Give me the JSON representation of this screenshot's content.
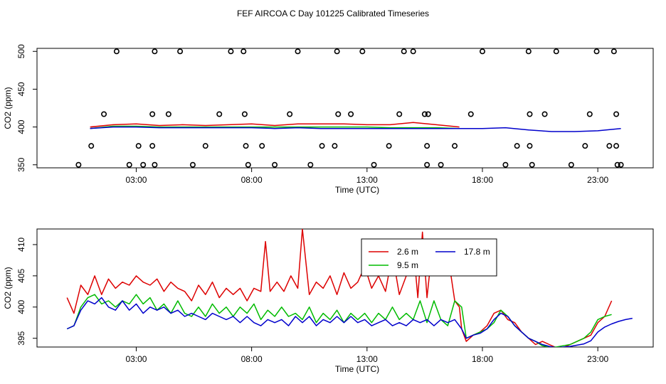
{
  "title": "FEF AIRCOA C  Day 101225  Calibrated Timeseries",
  "chart_data": [
    {
      "type": "scatter+line",
      "ylabel": "CO2 (ppm)",
      "xlabel": "Time (UTC)",
      "xlim": [
        -1.3,
        25.4
      ],
      "ylim": [
        346,
        504
      ],
      "xticks": [
        3,
        8,
        13,
        18,
        23
      ],
      "xtick_labels": [
        "03:00",
        "08:00",
        "13:00",
        "18:00",
        "23:00"
      ],
      "yticks": [
        350,
        400,
        450,
        500
      ],
      "ytick_labels": [
        "350",
        "400",
        "450",
        "500"
      ],
      "points": {
        "name": "calibration standards",
        "x": [
          0.5,
          1.6,
          1.05,
          2.15,
          2.7,
          3.1,
          3.3,
          3.8,
          3.7,
          3.7,
          3.8,
          4.4,
          4.9,
          5.45,
          6.0,
          6.6,
          7.1,
          7.65,
          7.7,
          7.75,
          7.85,
          8.45,
          9.0,
          9.65,
          10.0,
          10.55,
          11.05,
          11.6,
          11.7,
          11.75,
          12.3,
          12.8,
          13.3,
          13.95,
          14.4,
          14.6,
          15.0,
          15.5,
          15.6,
          15.6,
          15.65,
          16.2,
          16.8,
          17.5,
          18.0,
          19.0,
          19.5,
          20.0,
          20.05,
          20.05,
          20.15,
          20.7,
          21.2,
          21.85,
          22.45,
          22.65,
          22.95,
          23.5,
          23.7,
          23.8,
          23.8,
          23.85,
          24.0
        ],
        "y": [
          350,
          417,
          375,
          500,
          350,
          375,
          350,
          350,
          375,
          417,
          500,
          417,
          500,
          350,
          375,
          417,
          500,
          500,
          417,
          375,
          350,
          375,
          350,
          417,
          500,
          350,
          375,
          375,
          500,
          417,
          417,
          500,
          350,
          375,
          417,
          500,
          500,
          417,
          375,
          350,
          417,
          350,
          375,
          417,
          500,
          350,
          375,
          500,
          417,
          375,
          350,
          417,
          500,
          350,
          375,
          417,
          500,
          375,
          500,
          417,
          375,
          350,
          350
        ]
      },
      "series": [
        {
          "name": "2.6 m",
          "color": "#dd0000",
          "x": [
            1,
            2,
            3,
            4,
            5,
            6,
            7,
            8,
            9,
            10,
            11,
            12,
            13,
            14,
            15,
            16,
            17
          ],
          "values": [
            400,
            403,
            404,
            402,
            403,
            402,
            403,
            404,
            402,
            404,
            404,
            404,
            403,
            403,
            406,
            403,
            400
          ]
        },
        {
          "name": "9.5 m",
          "color": "#00bb00",
          "x": [
            1,
            2,
            3,
            4,
            5,
            6,
            7,
            8,
            9,
            10,
            11,
            12,
            13,
            14,
            15,
            16,
            17
          ],
          "values": [
            398,
            401,
            401,
            400,
            400,
            400,
            400,
            400,
            400,
            400,
            400,
            400,
            400,
            399,
            399,
            399,
            398
          ]
        },
        {
          "name": "17.8 m",
          "color": "#0000cc",
          "x": [
            1,
            2,
            3,
            4,
            5,
            6,
            7,
            8,
            9,
            10,
            11,
            12,
            13,
            14,
            15,
            16,
            17,
            18,
            19,
            20,
            21,
            22,
            23,
            24
          ],
          "values": [
            398,
            400,
            400,
            399,
            399,
            399,
            399,
            399,
            398,
            399,
            398,
            398,
            398,
            398,
            398,
            398,
            398,
            398,
            399,
            396,
            394,
            394,
            395,
            398
          ]
        }
      ]
    },
    {
      "type": "line",
      "ylabel": "CO2 (ppm)",
      "xlabel": "Time (UTC)",
      "xlim": [
        -1.3,
        25.4
      ],
      "ylim": [
        393.6,
        412.5
      ],
      "xticks": [
        3,
        8,
        13,
        18,
        23
      ],
      "xtick_labels": [
        "03:00",
        "08:00",
        "13:00",
        "18:00",
        "23:00"
      ],
      "yticks": [
        395,
        400,
        405,
        410
      ],
      "ytick_labels": [
        "395",
        "400",
        "405",
        "410"
      ],
      "legend_position": "top-center",
      "series": [
        {
          "name": "2.6 m",
          "color": "#dd0000",
          "x": [
            0,
            0.3,
            0.6,
            0.9,
            1.2,
            1.5,
            1.8,
            2.1,
            2.4,
            2.7,
            3.0,
            3.3,
            3.6,
            3.9,
            4.2,
            4.5,
            4.8,
            5.1,
            5.4,
            5.7,
            6.0,
            6.3,
            6.6,
            6.9,
            7.2,
            7.5,
            7.8,
            8.1,
            8.4,
            8.6,
            8.8,
            9.1,
            9.4,
            9.7,
            10.0,
            10.2,
            10.5,
            10.8,
            11.1,
            11.4,
            11.7,
            12.0,
            12.3,
            12.6,
            12.9,
            13.2,
            13.5,
            13.8,
            14.1,
            14.4,
            14.7,
            15.0,
            15.2,
            15.4,
            15.6,
            15.8,
            16.0,
            16.2,
            16.5,
            16.8,
            17.0,
            17.1,
            17.3,
            17.6,
            17.9,
            18.2,
            18.5,
            18.8,
            19.1,
            19.4,
            19.7,
            20.0,
            20.3,
            20.6,
            20.9,
            21.2,
            21.5,
            21.8,
            22.1,
            22.4,
            22.7,
            23.0,
            23.3,
            23.6
          ],
          "values": [
            401.5,
            399,
            403.5,
            402,
            405,
            402,
            404.5,
            403,
            404,
            403.5,
            405,
            404,
            403.5,
            404.5,
            402.5,
            404,
            403,
            402.5,
            401,
            403.5,
            402,
            404,
            401.5,
            403,
            402,
            403,
            401,
            403,
            402.5,
            410.5,
            402.5,
            404,
            402.5,
            405,
            403,
            412.5,
            402,
            404,
            403,
            405,
            402,
            405.5,
            403,
            404,
            406.5,
            403,
            405,
            402.5,
            408.5,
            402,
            405,
            410,
            401.5,
            412,
            401.5,
            408.5,
            409,
            406,
            408.5,
            401,
            400,
            396.5,
            394.5,
            395.5,
            396,
            397,
            399,
            399.5,
            398,
            397.5,
            396,
            395,
            394,
            394.5,
            394,
            393.5,
            393.5,
            394,
            394.5,
            395,
            395.5,
            397.5,
            398.5,
            401
          ]
        },
        {
          "name": "9.5 m",
          "color": "#00bb00",
          "x": [
            0,
            0.3,
            0.6,
            0.9,
            1.2,
            1.5,
            1.8,
            2.1,
            2.4,
            2.7,
            3.0,
            3.3,
            3.6,
            3.9,
            4.2,
            4.5,
            4.8,
            5.1,
            5.4,
            5.7,
            6.0,
            6.3,
            6.6,
            6.9,
            7.2,
            7.5,
            7.8,
            8.1,
            8.4,
            8.7,
            9.0,
            9.3,
            9.6,
            9.9,
            10.2,
            10.5,
            10.8,
            11.1,
            11.4,
            11.7,
            12.0,
            12.3,
            12.6,
            12.9,
            13.2,
            13.5,
            13.8,
            14.1,
            14.4,
            14.7,
            15.0,
            15.3,
            15.6,
            15.9,
            16.2,
            16.5,
            16.8,
            17.1,
            17.3,
            17.6,
            17.9,
            18.2,
            18.5,
            18.8,
            19.1,
            19.4,
            19.7,
            20.0,
            20.3,
            20.6,
            20.9,
            21.2,
            21.5,
            21.8,
            22.1,
            22.4,
            22.7,
            23.0,
            23.3,
            23.6
          ],
          "values": [
            396.5,
            397,
            400,
            401.5,
            402,
            400.5,
            401,
            400,
            401,
            400.5,
            402,
            400.5,
            401.5,
            399.5,
            400.5,
            399,
            401,
            399,
            398.5,
            400,
            398.5,
            400.5,
            399,
            400,
            398.5,
            400,
            399,
            400.5,
            398,
            399.5,
            398.5,
            400,
            398.5,
            399,
            398,
            400,
            397.5,
            399,
            398,
            399.5,
            397.5,
            399,
            398,
            399,
            397.5,
            399,
            398,
            400,
            398,
            399,
            398,
            401,
            397.5,
            401,
            398,
            397,
            401,
            400,
            395,
            395.5,
            396,
            396.5,
            397.5,
            399.5,
            398.5,
            397,
            396,
            395,
            394.5,
            393.8,
            393.6,
            393.6,
            393.8,
            394,
            394.5,
            395,
            396,
            398,
            398.5,
            398.8
          ]
        },
        {
          "name": "17.8 m",
          "color": "#0000cc",
          "x": [
            0,
            0.3,
            0.6,
            0.9,
            1.2,
            1.5,
            1.8,
            2.1,
            2.4,
            2.7,
            3.0,
            3.3,
            3.6,
            3.9,
            4.2,
            4.5,
            4.8,
            5.1,
            5.4,
            5.7,
            6.0,
            6.3,
            6.6,
            6.9,
            7.2,
            7.5,
            7.8,
            8.1,
            8.4,
            8.7,
            9.0,
            9.3,
            9.6,
            9.9,
            10.2,
            10.5,
            10.8,
            11.1,
            11.4,
            11.7,
            12.0,
            12.3,
            12.6,
            12.9,
            13.2,
            13.5,
            13.8,
            14.1,
            14.4,
            14.7,
            15.0,
            15.3,
            15.6,
            15.9,
            16.2,
            16.5,
            16.8,
            17.1,
            17.3,
            17.6,
            17.9,
            18.2,
            18.5,
            18.8,
            19.1,
            19.4,
            19.7,
            20.0,
            20.3,
            20.6,
            20.9,
            21.2,
            21.5,
            21.8,
            22.1,
            22.4,
            22.7,
            23.0,
            23.3,
            23.6,
            23.9,
            24.2,
            24.5
          ],
          "values": [
            396.5,
            397,
            399.5,
            401,
            400.5,
            401.5,
            400,
            399.5,
            401,
            399.5,
            400.5,
            399,
            400,
            399.5,
            400,
            399,
            399.5,
            398.5,
            399,
            398.5,
            398,
            399,
            398.5,
            398,
            398.5,
            397.5,
            398.5,
            397.5,
            397,
            398,
            397.5,
            398,
            397,
            398.5,
            397.5,
            398.5,
            397,
            398,
            397.5,
            398.5,
            397.5,
            398.5,
            397.5,
            398,
            397,
            397.5,
            398,
            397,
            397.5,
            397,
            398,
            397.5,
            398,
            397,
            398,
            397.5,
            398,
            396.5,
            395,
            395.5,
            395.8,
            396.5,
            398,
            399,
            398.5,
            397,
            396,
            395,
            394.5,
            394,
            393.7,
            393.5,
            393.6,
            393.7,
            393.9,
            394.1,
            394.6,
            396,
            396.8,
            397.3,
            397.7,
            398,
            398.2
          ]
        }
      ]
    }
  ]
}
